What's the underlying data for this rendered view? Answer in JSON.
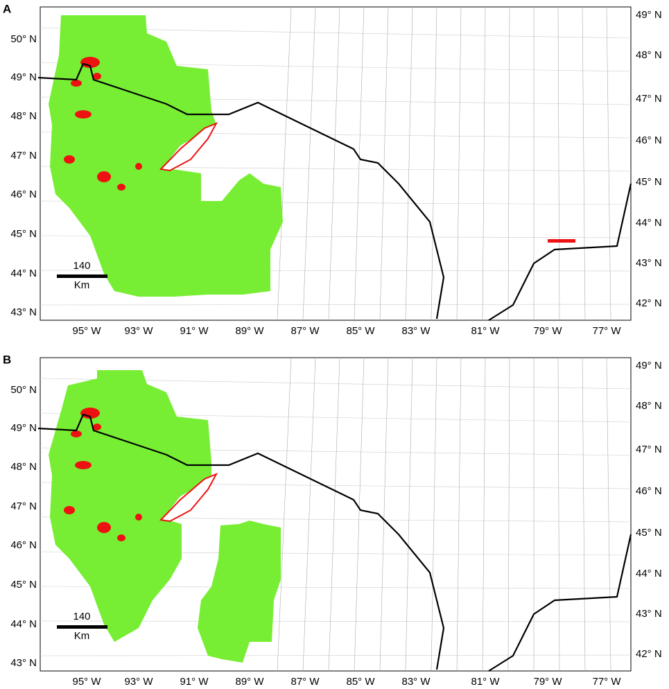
{
  "panels": [
    {
      "label": "A",
      "left_ticks": [
        "50° N",
        "49° N",
        "48° N",
        "47° N",
        "46° N",
        "45° N",
        "44° N",
        "43° N"
      ],
      "right_ticks": [
        "49° N",
        "48° N",
        "47° N",
        "46° N",
        "45° N",
        "44° N",
        "43° N",
        "42° N"
      ],
      "bottom_ticks": [
        "95° W",
        "93° W",
        "91° W",
        "89° W",
        "87° W",
        "85° W",
        "83° W",
        "81° W",
        "79° W",
        "77° W"
      ],
      "scale_bar": {
        "distance": "140",
        "unit": "Km"
      }
    },
    {
      "label": "B",
      "left_ticks": [
        "50° N",
        "49° N",
        "48° N",
        "47° N",
        "46° N",
        "45° N",
        "44° N",
        "43° N"
      ],
      "right_ticks": [
        "49° N",
        "48° N",
        "47° N",
        "46° N",
        "45° N",
        "44° N",
        "43° N",
        "42° N"
      ],
      "bottom_ticks": [
        "95° W",
        "93° W",
        "91° W",
        "89° W",
        "87° W",
        "85° W",
        "83° W",
        "81° W",
        "79° W",
        "77° W"
      ],
      "scale_bar": {
        "distance": "140",
        "unit": "Km"
      }
    }
  ]
}
